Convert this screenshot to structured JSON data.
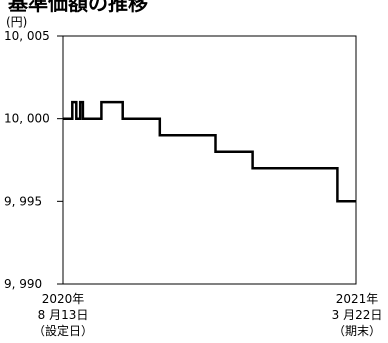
{
  "chart_data": {
    "type": "line",
    "title": "基準価額の推移",
    "unit_label": "(円)",
    "ylim": [
      9990,
      10005
    ],
    "y_ticks": [
      {
        "value": 10005,
        "label": "10, 005"
      },
      {
        "value": 10000,
        "label": "10, 000"
      },
      {
        "value": 9995,
        "label": "9, 995"
      },
      {
        "value": 9990,
        "label": "9, 990"
      }
    ],
    "x_range": [
      "2020-08-13",
      "2021-03-22"
    ],
    "x_start_label": [
      "2020年",
      "8 月13日",
      "（設定日）"
    ],
    "x_end_label": [
      "2021年",
      "3 月22日",
      "（期末）"
    ],
    "grid": false,
    "line_color": "#000000",
    "series": [
      {
        "step": true,
        "x": [
          "2020-08-13",
          "2020-08-20",
          "2020-08-23",
          "2020-08-26",
          "2020-08-28",
          "2020-09-11",
          "2020-09-27",
          "2020-10-25",
          "2020-12-06",
          "2021-01-03",
          "2021-03-08",
          "2021-03-22"
        ],
        "y": [
          10000,
          10001,
          10000,
          10001,
          10000,
          10001,
          10000,
          9999,
          9998,
          9997,
          9995,
          9995
        ]
      }
    ]
  }
}
